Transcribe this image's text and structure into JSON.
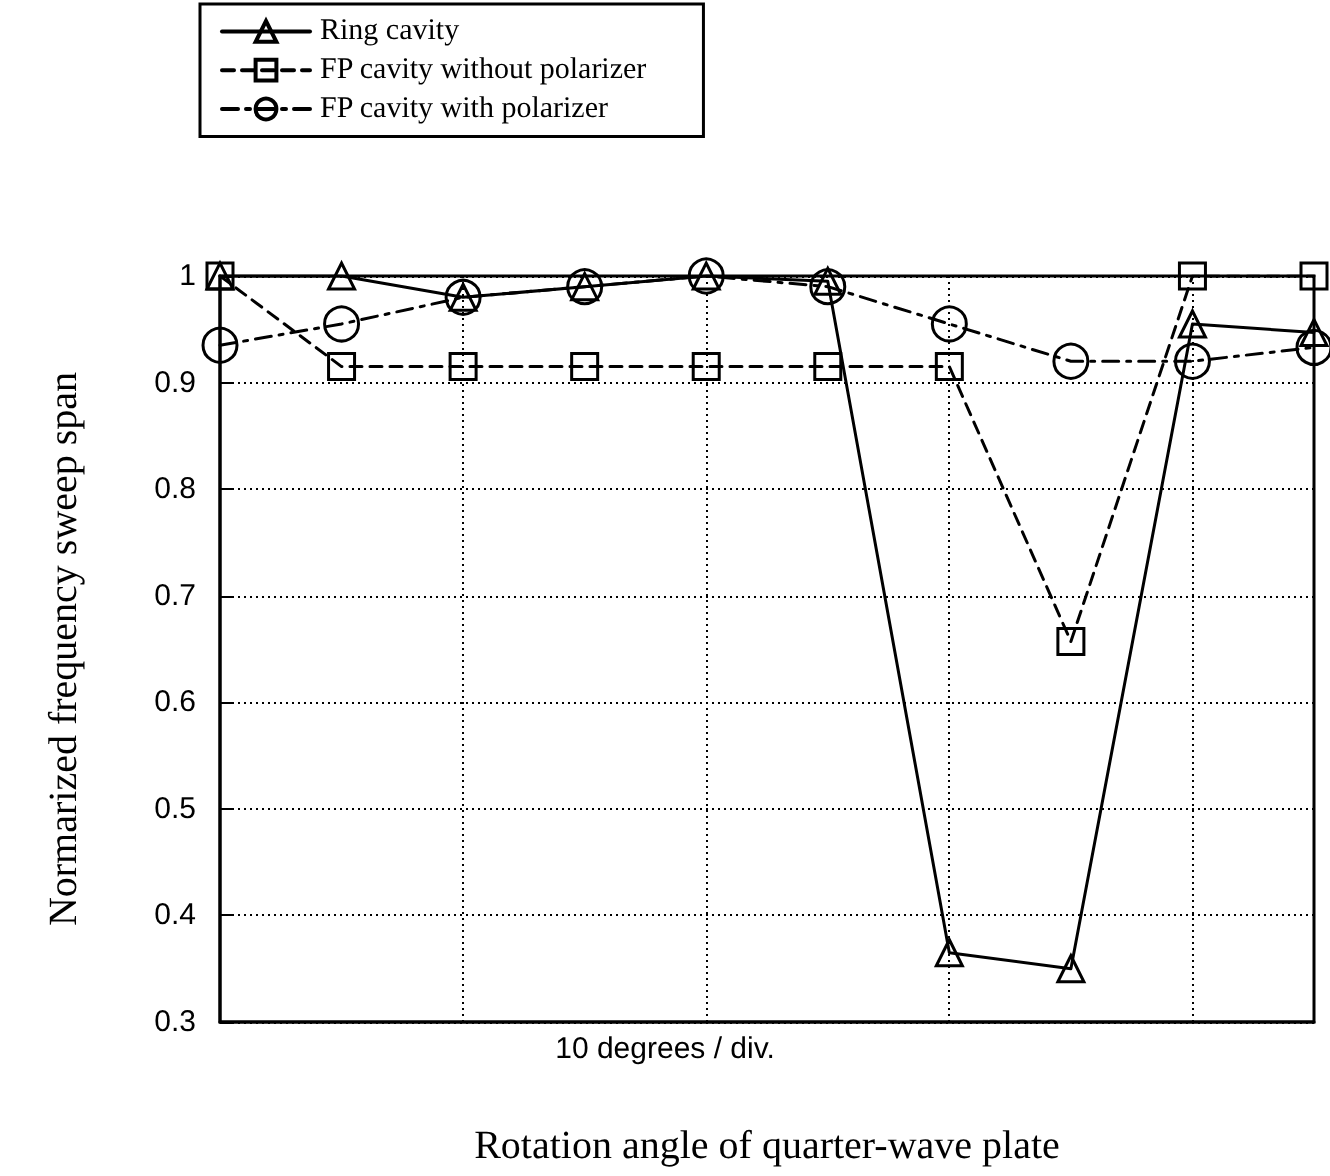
{
  "chart_data": {
    "type": "line",
    "xlabel": "Rotation angle of quarter-wave plate",
    "ylabel": "Normarized frequency sweep span",
    "annotations": [
      "10 degrees / div."
    ],
    "categories": [
      null,
      null,
      null,
      null,
      null,
      null,
      null,
      null,
      null,
      null
    ],
    "series": [
      {
        "name": "Ring cavity",
        "color": "#000000",
        "marker": "triangle",
        "line_style": "solid",
        "values": [
          1.0,
          1.0,
          0.98,
          0.99,
          1.0,
          0.995,
          0.365,
          0.35,
          0.955,
          0.947
        ]
      },
      {
        "name": "FP cavity without polarizer",
        "color": "#000000",
        "marker": "square",
        "line_style": "dashed",
        "values": [
          1.0,
          0.915,
          0.915,
          0.915,
          0.915,
          0.915,
          0.915,
          0.657,
          1.0,
          1.0
        ]
      },
      {
        "name": "FP cavity with polarizer",
        "color": "#000000",
        "marker": "circle",
        "line_style": "dotted",
        "values": [
          0.935,
          0.955,
          0.98,
          0.99,
          1.0,
          0.99,
          0.955,
          0.92,
          0.92,
          0.933
        ]
      }
    ],
    "ylim": [
      0.3,
      1
    ],
    "yticks": [
      0.3,
      0.4,
      0.5,
      0.6,
      0.7,
      0.8,
      0.9,
      1
    ],
    "grid": true,
    "legend": "top left"
  }
}
